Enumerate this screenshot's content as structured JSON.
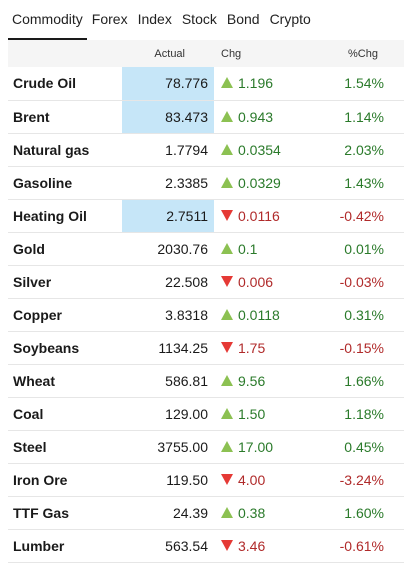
{
  "tabs": [
    "Commodity",
    "Forex",
    "Index",
    "Stock",
    "Bond",
    "Crypto"
  ],
  "active_tab": "Commodity",
  "columns": {
    "name": "",
    "actual": "Actual",
    "chg": "Chg",
    "pct": "%Chg"
  },
  "colors": {
    "up": "#8cc152",
    "down": "#e53935",
    "positive_text": "#2a7a2a",
    "negative_text": "#b02a2a",
    "highlight": "#c6e6f8"
  },
  "rows": [
    {
      "name": "Crude Oil",
      "actual": "78.776",
      "chg": "1.196",
      "pct": "1.54%",
      "dir": "up",
      "highlight": true
    },
    {
      "name": "Brent",
      "actual": "83.473",
      "chg": "0.943",
      "pct": "1.14%",
      "dir": "up",
      "highlight": true
    },
    {
      "name": "Natural gas",
      "actual": "1.7794",
      "chg": "0.0354",
      "pct": "2.03%",
      "dir": "up",
      "highlight": false
    },
    {
      "name": "Gasoline",
      "actual": "2.3385",
      "chg": "0.0329",
      "pct": "1.43%",
      "dir": "up",
      "highlight": false
    },
    {
      "name": "Heating Oil",
      "actual": "2.7511",
      "chg": "0.0116",
      "pct": "-0.42%",
      "dir": "down",
      "highlight": true
    },
    {
      "name": "Gold",
      "actual": "2030.76",
      "chg": "0.1",
      "pct": "0.01%",
      "dir": "up",
      "highlight": false
    },
    {
      "name": "Silver",
      "actual": "22.508",
      "chg": "0.006",
      "pct": "-0.03%",
      "dir": "down",
      "highlight": false
    },
    {
      "name": "Copper",
      "actual": "3.8318",
      "chg": "0.0118",
      "pct": "0.31%",
      "dir": "up",
      "highlight": false
    },
    {
      "name": "Soybeans",
      "actual": "1134.25",
      "chg": "1.75",
      "pct": "-0.15%",
      "dir": "down",
      "highlight": false
    },
    {
      "name": "Wheat",
      "actual": "586.81",
      "chg": "9.56",
      "pct": "1.66%",
      "dir": "up",
      "highlight": false
    },
    {
      "name": "Coal",
      "actual": "129.00",
      "chg": "1.50",
      "pct": "1.18%",
      "dir": "up",
      "highlight": false
    },
    {
      "name": "Steel",
      "actual": "3755.00",
      "chg": "17.00",
      "pct": "0.45%",
      "dir": "up",
      "highlight": false
    },
    {
      "name": "Iron Ore",
      "actual": "119.50",
      "chg": "4.00",
      "pct": "-3.24%",
      "dir": "down",
      "highlight": false
    },
    {
      "name": "TTF Gas",
      "actual": "24.39",
      "chg": "0.38",
      "pct": "1.60%",
      "dir": "up",
      "highlight": false
    },
    {
      "name": "Lumber",
      "actual": "563.54",
      "chg": "3.46",
      "pct": "-0.61%",
      "dir": "down",
      "highlight": false
    }
  ]
}
